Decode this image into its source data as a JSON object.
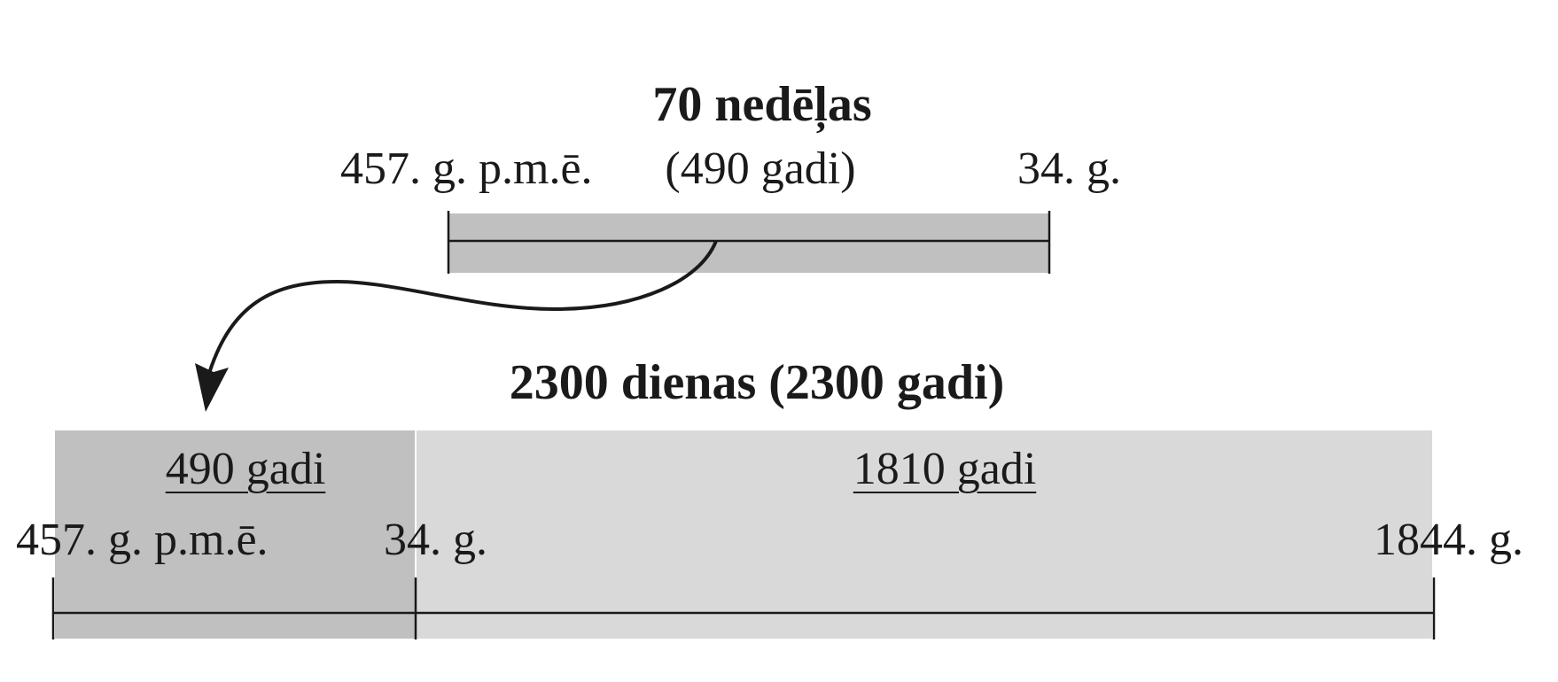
{
  "top": {
    "title": "70 nedēļas",
    "start_label": "457. g. p.m.ē.",
    "duration_label": "(490 gadi)",
    "end_label": "34. g."
  },
  "bottom": {
    "title": "2300 dienas (2300 gadi)",
    "segment1_label": "490 gadi",
    "segment2_label": "1810 gadi",
    "start_label": "457. g. p.m.ē.",
    "mid_label": "34. g.",
    "end_label": "1844. g."
  },
  "colors": {
    "top_bar": "#c0c0c0",
    "segment1": "#c0c0c0",
    "segment2": "#d9d9d9",
    "line": "#1a1a1a"
  }
}
